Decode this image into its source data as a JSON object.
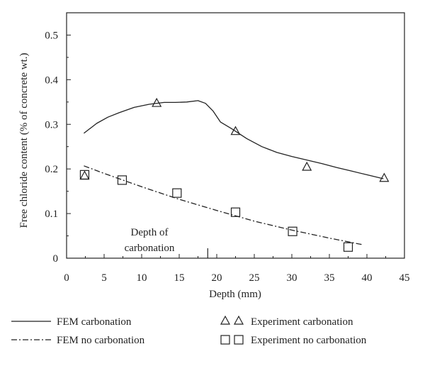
{
  "chart_data": {
    "type": "line",
    "title": "",
    "xlabel": "Depth (mm)",
    "ylabel": "Free chloride content (% of concrete wt.)",
    "xlim": [
      0,
      45
    ],
    "ylim": [
      0,
      0.55
    ],
    "x_ticks": [
      "0",
      "5",
      "10",
      "15",
      "20",
      "25",
      "30",
      "35",
      "40",
      "45"
    ],
    "y_ticks": [
      "0",
      "0.1",
      "0.2",
      "0.3",
      "0.4",
      "0.5"
    ],
    "grid": false,
    "legend_position": "bottom",
    "series": [
      {
        "name": "FEM carbonation",
        "style": "solid",
        "color": "#222222",
        "x": [
          2.3,
          4,
          5.5,
          7,
          9,
          11,
          13,
          14.5,
          16,
          17.5,
          18.5,
          19.5,
          20.5,
          22,
          24,
          26,
          28,
          30,
          32,
          34,
          36,
          38,
          40,
          42.2
        ],
        "y": [
          0.28,
          0.302,
          0.316,
          0.326,
          0.338,
          0.345,
          0.349,
          0.349,
          0.35,
          0.353,
          0.347,
          0.33,
          0.305,
          0.29,
          0.268,
          0.25,
          0.237,
          0.228,
          0.22,
          0.212,
          0.203,
          0.195,
          0.187,
          0.178
        ]
      },
      {
        "name": "FEM no carbonation",
        "style": "dashdot",
        "color": "#222222",
        "x": [
          2.3,
          5,
          10,
          15,
          20,
          25,
          30,
          35,
          39.5
        ],
        "y": [
          0.207,
          0.19,
          0.16,
          0.132,
          0.107,
          0.083,
          0.063,
          0.045,
          0.03
        ]
      },
      {
        "name": "Experiment carbonation",
        "marker": "triangle",
        "color": "#222222",
        "x": [
          2.4,
          12,
          22.5,
          32,
          42.3
        ],
        "y": [
          0.185,
          0.348,
          0.285,
          0.205,
          0.18
        ]
      },
      {
        "name": "Experiment no carbonation",
        "marker": "square",
        "color": "#222222",
        "x": [
          2.4,
          7.4,
          14.7,
          22.5,
          30.1,
          37.5
        ],
        "y": [
          0.187,
          0.175,
          0.146,
          0.103,
          0.06,
          0.025
        ]
      }
    ],
    "annotations": [
      {
        "text_lines": [
          "Depth of",
          "carbonation"
        ],
        "marker_x": 18.8
      }
    ]
  }
}
